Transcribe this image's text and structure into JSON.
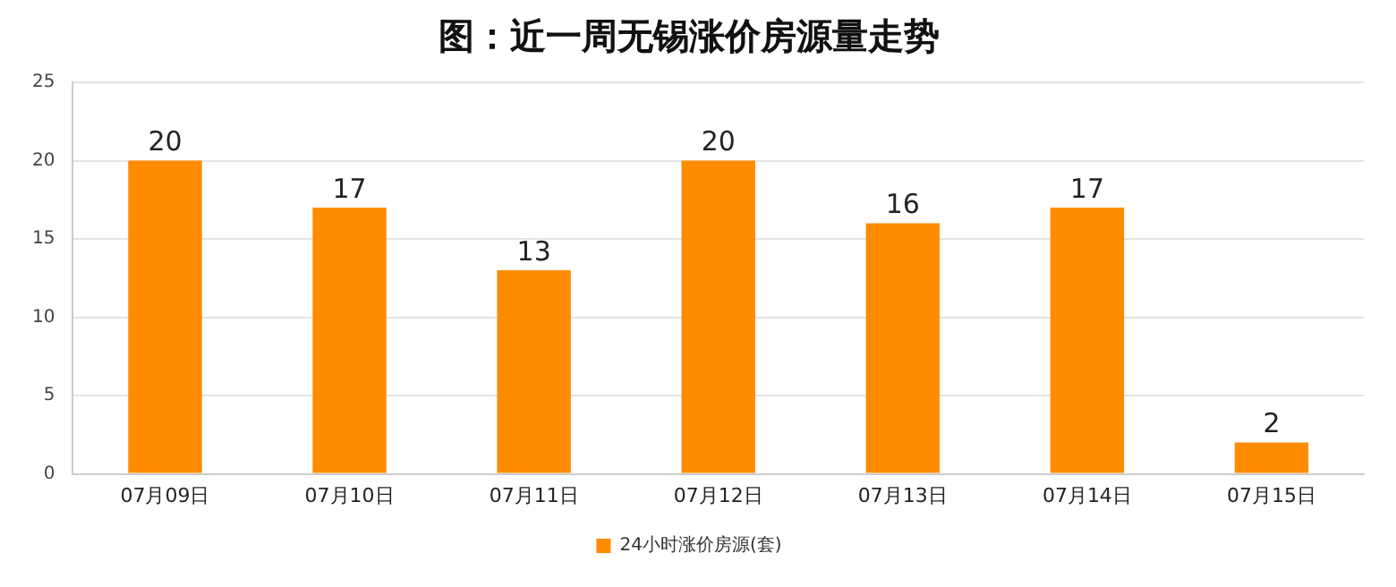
{
  "chart_data": {
    "type": "bar",
    "title": "图：近一周无锡涨价房源量走势",
    "categories": [
      "07月09日",
      "07月10日",
      "07月11日",
      "07月12日",
      "07月13日",
      "07月14日",
      "07月15日"
    ],
    "series": [
      {
        "name": "24小时涨价房源(套)",
        "color": "#ff8c00",
        "values": [
          20,
          17,
          13,
          20,
          16,
          17,
          2
        ]
      }
    ],
    "ylim": [
      0,
      25
    ],
    "yticks": [
      0,
      5,
      10,
      15,
      20,
      25
    ],
    "grid": "y",
    "legend": "bottom",
    "data_labels": true
  }
}
